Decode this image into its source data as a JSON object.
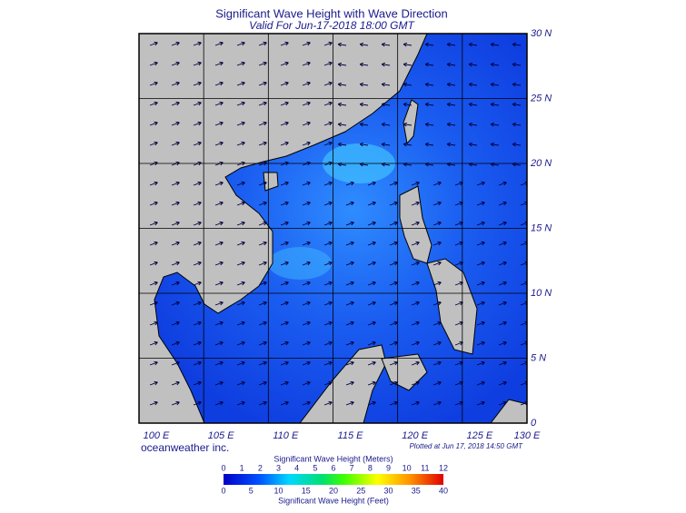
{
  "header": {
    "title": "Significant Wave Height with Wave Direction",
    "subtitle": "Valid For Jun-17-2018 18:00 GMT"
  },
  "map": {
    "lat_labels": [
      "30 N",
      "25 N",
      "20 N",
      "15 N",
      "10 N",
      "5 N",
      "0"
    ],
    "lon_labels": [
      "100 E",
      "105 E",
      "110 E",
      "115 E",
      "120 E",
      "125 E",
      "130 E"
    ]
  },
  "credit": "oceanweather inc.",
  "plotted": "Plotted at Jun 17, 2018 14:50 GMT",
  "colorbar": {
    "meters_title": "Significant Wave Height (Meters)",
    "meters_ticks": [
      0,
      1,
      2,
      3,
      4,
      5,
      6,
      7,
      8,
      9,
      10,
      11,
      12
    ],
    "feet_ticks": [
      0,
      5,
      10,
      15,
      20,
      25,
      30,
      35,
      40
    ],
    "feet_title": "Significant Wave Height (Feet)"
  }
}
